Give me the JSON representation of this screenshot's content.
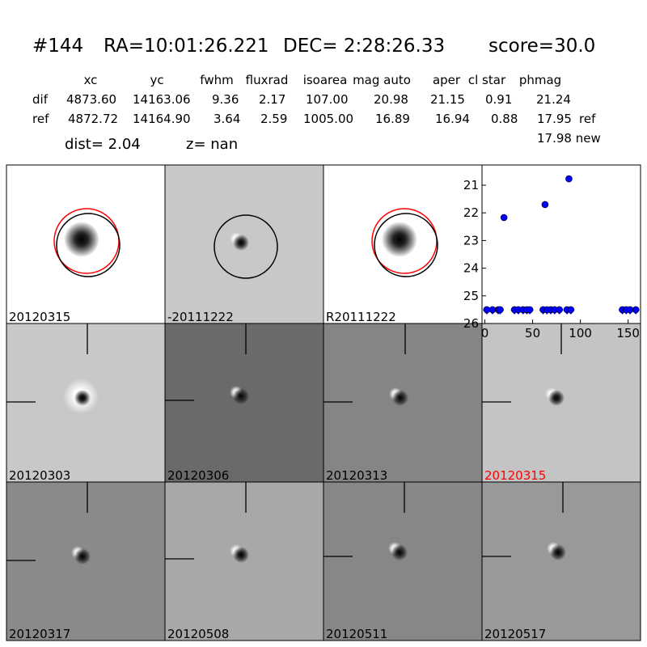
{
  "header": {
    "id": "#144",
    "ra": "RA=10:01:26.221",
    "dec": "DEC= 2:28:26.33",
    "score": "score=30.0"
  },
  "table": {
    "columns": [
      "xc",
      "yc",
      "fwhm",
      "fluxrad",
      "isoarea",
      "mag auto",
      "aper",
      "cl star",
      "phmag"
    ],
    "rows": [
      [
        "dif",
        "4873.60",
        "14163.06",
        "9.36",
        "2.17",
        "107.00",
        "20.98",
        "21.15",
        "0.91",
        "21.24"
      ],
      [
        "ref",
        "4872.72",
        "14164.90",
        "3.64",
        "2.59",
        "1005.00",
        "16.89",
        "16.94",
        "0.88",
        "17.95",
        "ref"
      ]
    ],
    "extra": "17.98 new"
  },
  "dist": "dist=  2.04",
  "z": "z=   nan",
  "stamps": [
    {
      "label": "20120315"
    },
    {
      "label": "-20111222"
    },
    {
      "label": "R20111222"
    },
    {
      "label": "20120303"
    },
    {
      "label": "20120306"
    },
    {
      "label": "20120313"
    },
    {
      "label": "20120315"
    },
    {
      "label": "20120317"
    },
    {
      "label": "20120508"
    },
    {
      "label": "20120511"
    },
    {
      "label": "20120517"
    }
  ],
  "lightcurve": {
    "type": "scatter",
    "xlim": [
      -3,
      163
    ],
    "ylim": [
      26,
      20.27
    ],
    "xticks": [
      0,
      50,
      100,
      150
    ],
    "yticks": [
      21,
      22,
      23,
      24,
      25,
      26
    ],
    "series": [
      {
        "marker": "circle",
        "color": "#0000ff",
        "x": [
          20,
          63,
          88
        ],
        "values": [
          22.17,
          21.7,
          20.77
        ],
        "errors": [
          0.12,
          0.12,
          0.08
        ]
      },
      {
        "marker": "triangle-down",
        "color": "#0000ff",
        "x": [
          2,
          8,
          14,
          16,
          31,
          35,
          40,
          44,
          47,
          61,
          65,
          69,
          73,
          78,
          86,
          90,
          144,
          148,
          152,
          158
        ],
        "values": [
          25.5,
          25.5,
          25.5,
          25.5,
          25.5,
          25.5,
          25.5,
          25.5,
          25.5,
          25.5,
          25.5,
          25.5,
          25.5,
          25.5,
          25.5,
          25.5,
          25.5,
          25.5,
          25.5,
          25.5
        ]
      }
    ]
  }
}
